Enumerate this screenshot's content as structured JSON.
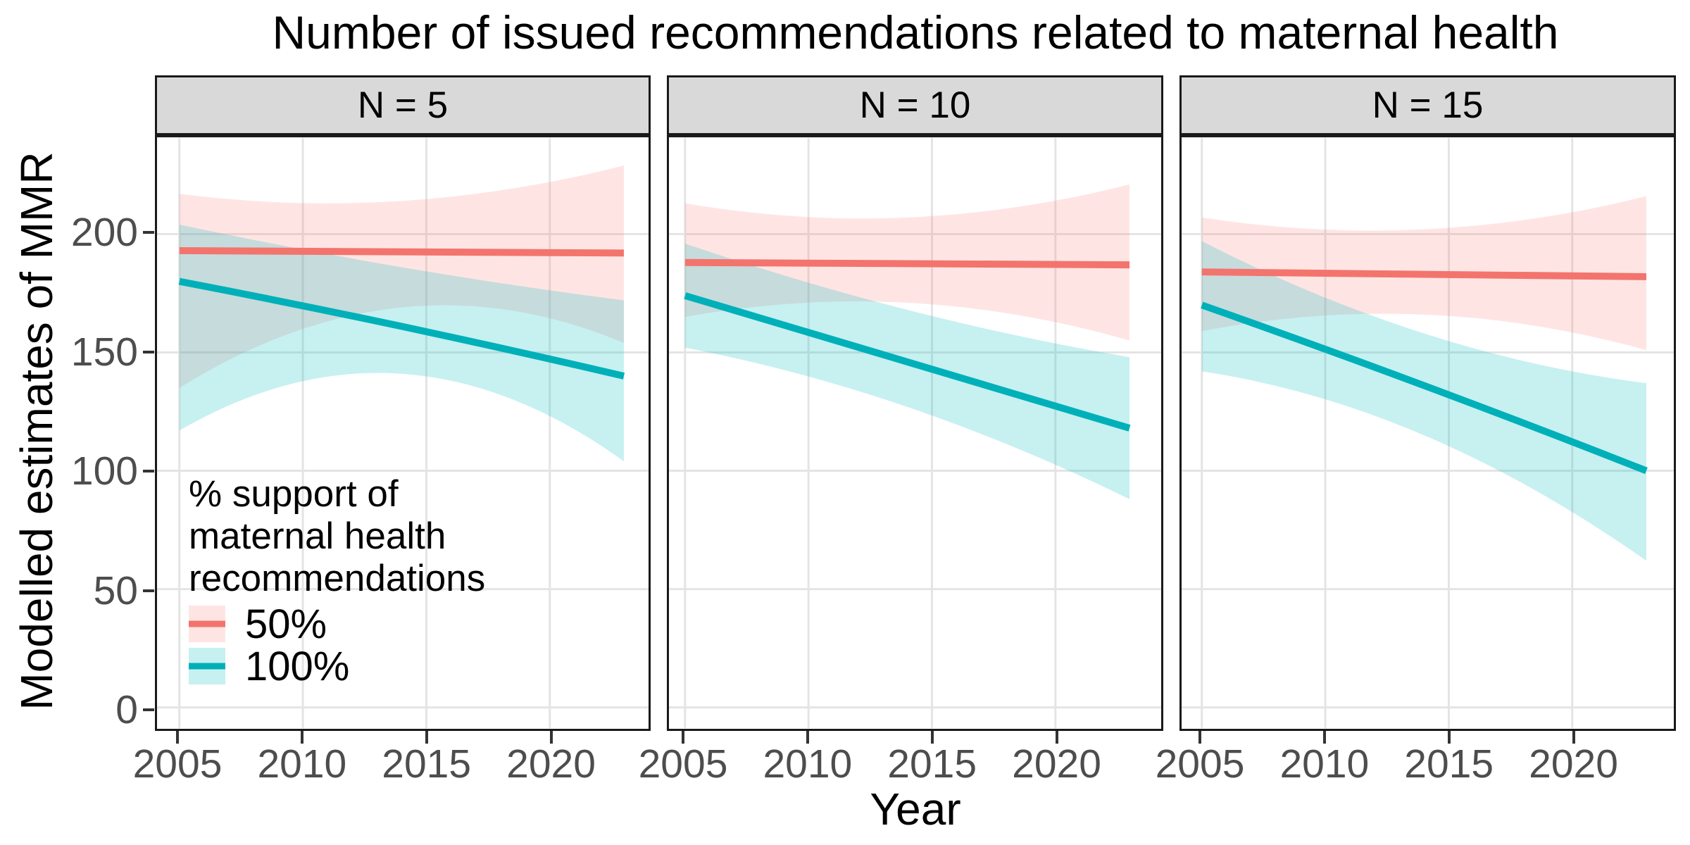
{
  "title": "Number of issued recommendations related to maternal health",
  "chart_data": {
    "type": "line",
    "title": "Number of issued recommendations related to maternal health",
    "xlabel": "Year",
    "ylabel": "Modelled estimates of MMR",
    "x_ticks": [
      2005,
      2010,
      2015,
      2020
    ],
    "y_ticks": [
      0,
      50,
      100,
      150,
      200
    ],
    "x_data_range": [
      2005,
      2023
    ],
    "grid": "major-only",
    "legend_position": "inside-left-panel",
    "facets": [
      {
        "label": "N = 5",
        "series": [
          {
            "name": "50%",
            "x": [
              2005,
              2014,
              2023
            ],
            "line": [
              193,
              192.5,
              192
            ],
            "ci_upper": [
              217,
              214,
              229
            ],
            "ci_lower": [
              135,
              169,
              154
            ]
          },
          {
            "name": "100%",
            "x": [
              2005,
              2014,
              2023
            ],
            "line": [
              180,
              161,
              140
            ],
            "ci_upper": [
              204,
              186,
              172
            ],
            "ci_lower": [
              117,
              141,
              104
            ]
          }
        ]
      },
      {
        "label": "N = 10",
        "series": [
          {
            "name": "50%",
            "x": [
              2005,
              2014,
              2023
            ],
            "line": [
              188,
              187.5,
              187
            ],
            "ci_upper": [
              213,
              207,
              221
            ],
            "ci_lower": [
              165,
              171,
              155
            ]
          },
          {
            "name": "100%",
            "x": [
              2005,
              2014,
              2023
            ],
            "line": [
              174,
              146,
              118
            ],
            "ci_upper": [
              196,
              168,
              148
            ],
            "ci_lower": [
              152,
              127,
              88
            ]
          }
        ]
      },
      {
        "label": "N = 15",
        "series": [
          {
            "name": "50%",
            "x": [
              2005,
              2014,
              2023
            ],
            "line": [
              184,
              183,
              182
            ],
            "ci_upper": [
              207,
              202,
              216
            ],
            "ci_lower": [
              159,
              166,
              151
            ]
          },
          {
            "name": "100%",
            "x": [
              2005,
              2014,
              2023
            ],
            "line": [
              170,
              136,
              100
            ],
            "ci_upper": [
              197,
              158,
              137
            ],
            "ci_lower": [
              142,
              115,
              62
            ]
          }
        ]
      }
    ],
    "legend": {
      "title_lines": [
        "% support of",
        "maternal health",
        "recommendations"
      ],
      "entries": [
        {
          "label": "50%",
          "line_color": "#F3746D",
          "fill_color": "rgba(248,118,109,0.19)"
        },
        {
          "label": "100%",
          "line_color": "#00B0B8",
          "fill_color": "rgba(0,186,193,0.22)"
        }
      ]
    },
    "colors": {
      "red_line": "#F3746D",
      "red_fill": "rgba(248,118,109,0.19)",
      "teal_line": "#00B0B8",
      "teal_fill": "rgba(0,186,193,0.22)",
      "gridline": "#E4E4E4",
      "panel_border": "#1A1A1A",
      "strip_fill": "#D9D9D9",
      "tick_text": "#4D4D4D",
      "tick_mark": "#333333"
    }
  }
}
